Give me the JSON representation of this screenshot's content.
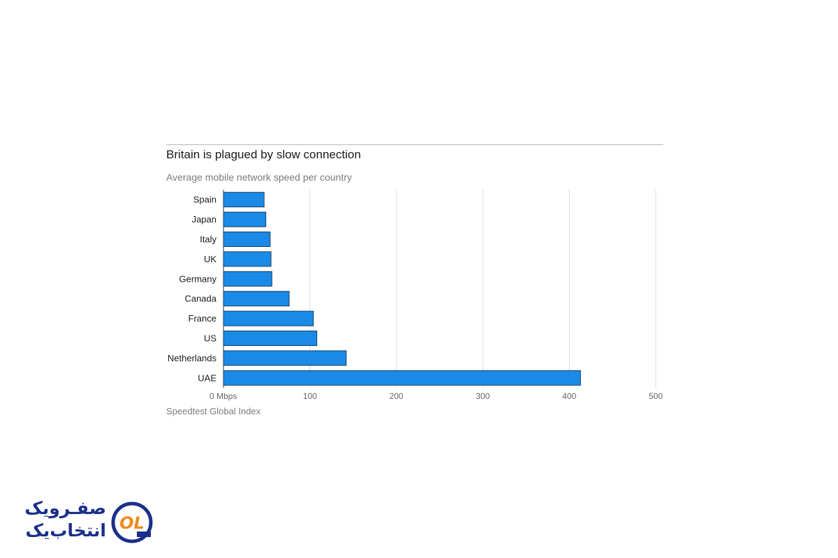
{
  "chart_data": {
    "type": "bar",
    "orientation": "horizontal",
    "title": "Britain is plagued by slow connection",
    "subtitle": "Average mobile network speed per country",
    "source": "Speedtest Global Index",
    "categories": [
      "Spain",
      "Japan",
      "Italy",
      "UK",
      "Germany",
      "Canada",
      "France",
      "US",
      "Netherlands",
      "UAE"
    ],
    "values": [
      47,
      49,
      54,
      55,
      56,
      76,
      104,
      108,
      142,
      413
    ],
    "x_ticks": [
      0,
      100,
      200,
      300,
      400,
      500
    ],
    "x_tick_labels": [
      "0 Mbps",
      "100",
      "200",
      "300",
      "400",
      "500"
    ],
    "xlim": [
      0,
      500
    ],
    "grid": true,
    "bar_color": "#1a8ae6",
    "bar_stroke": "#1b3e62"
  },
  "logo": {
    "line1": "صفـرویک",
    "line2": "انتخاب‌یک",
    "mark_text": "OL",
    "primary_color": "#1a2f8a",
    "accent_color": "#f08a1c"
  }
}
